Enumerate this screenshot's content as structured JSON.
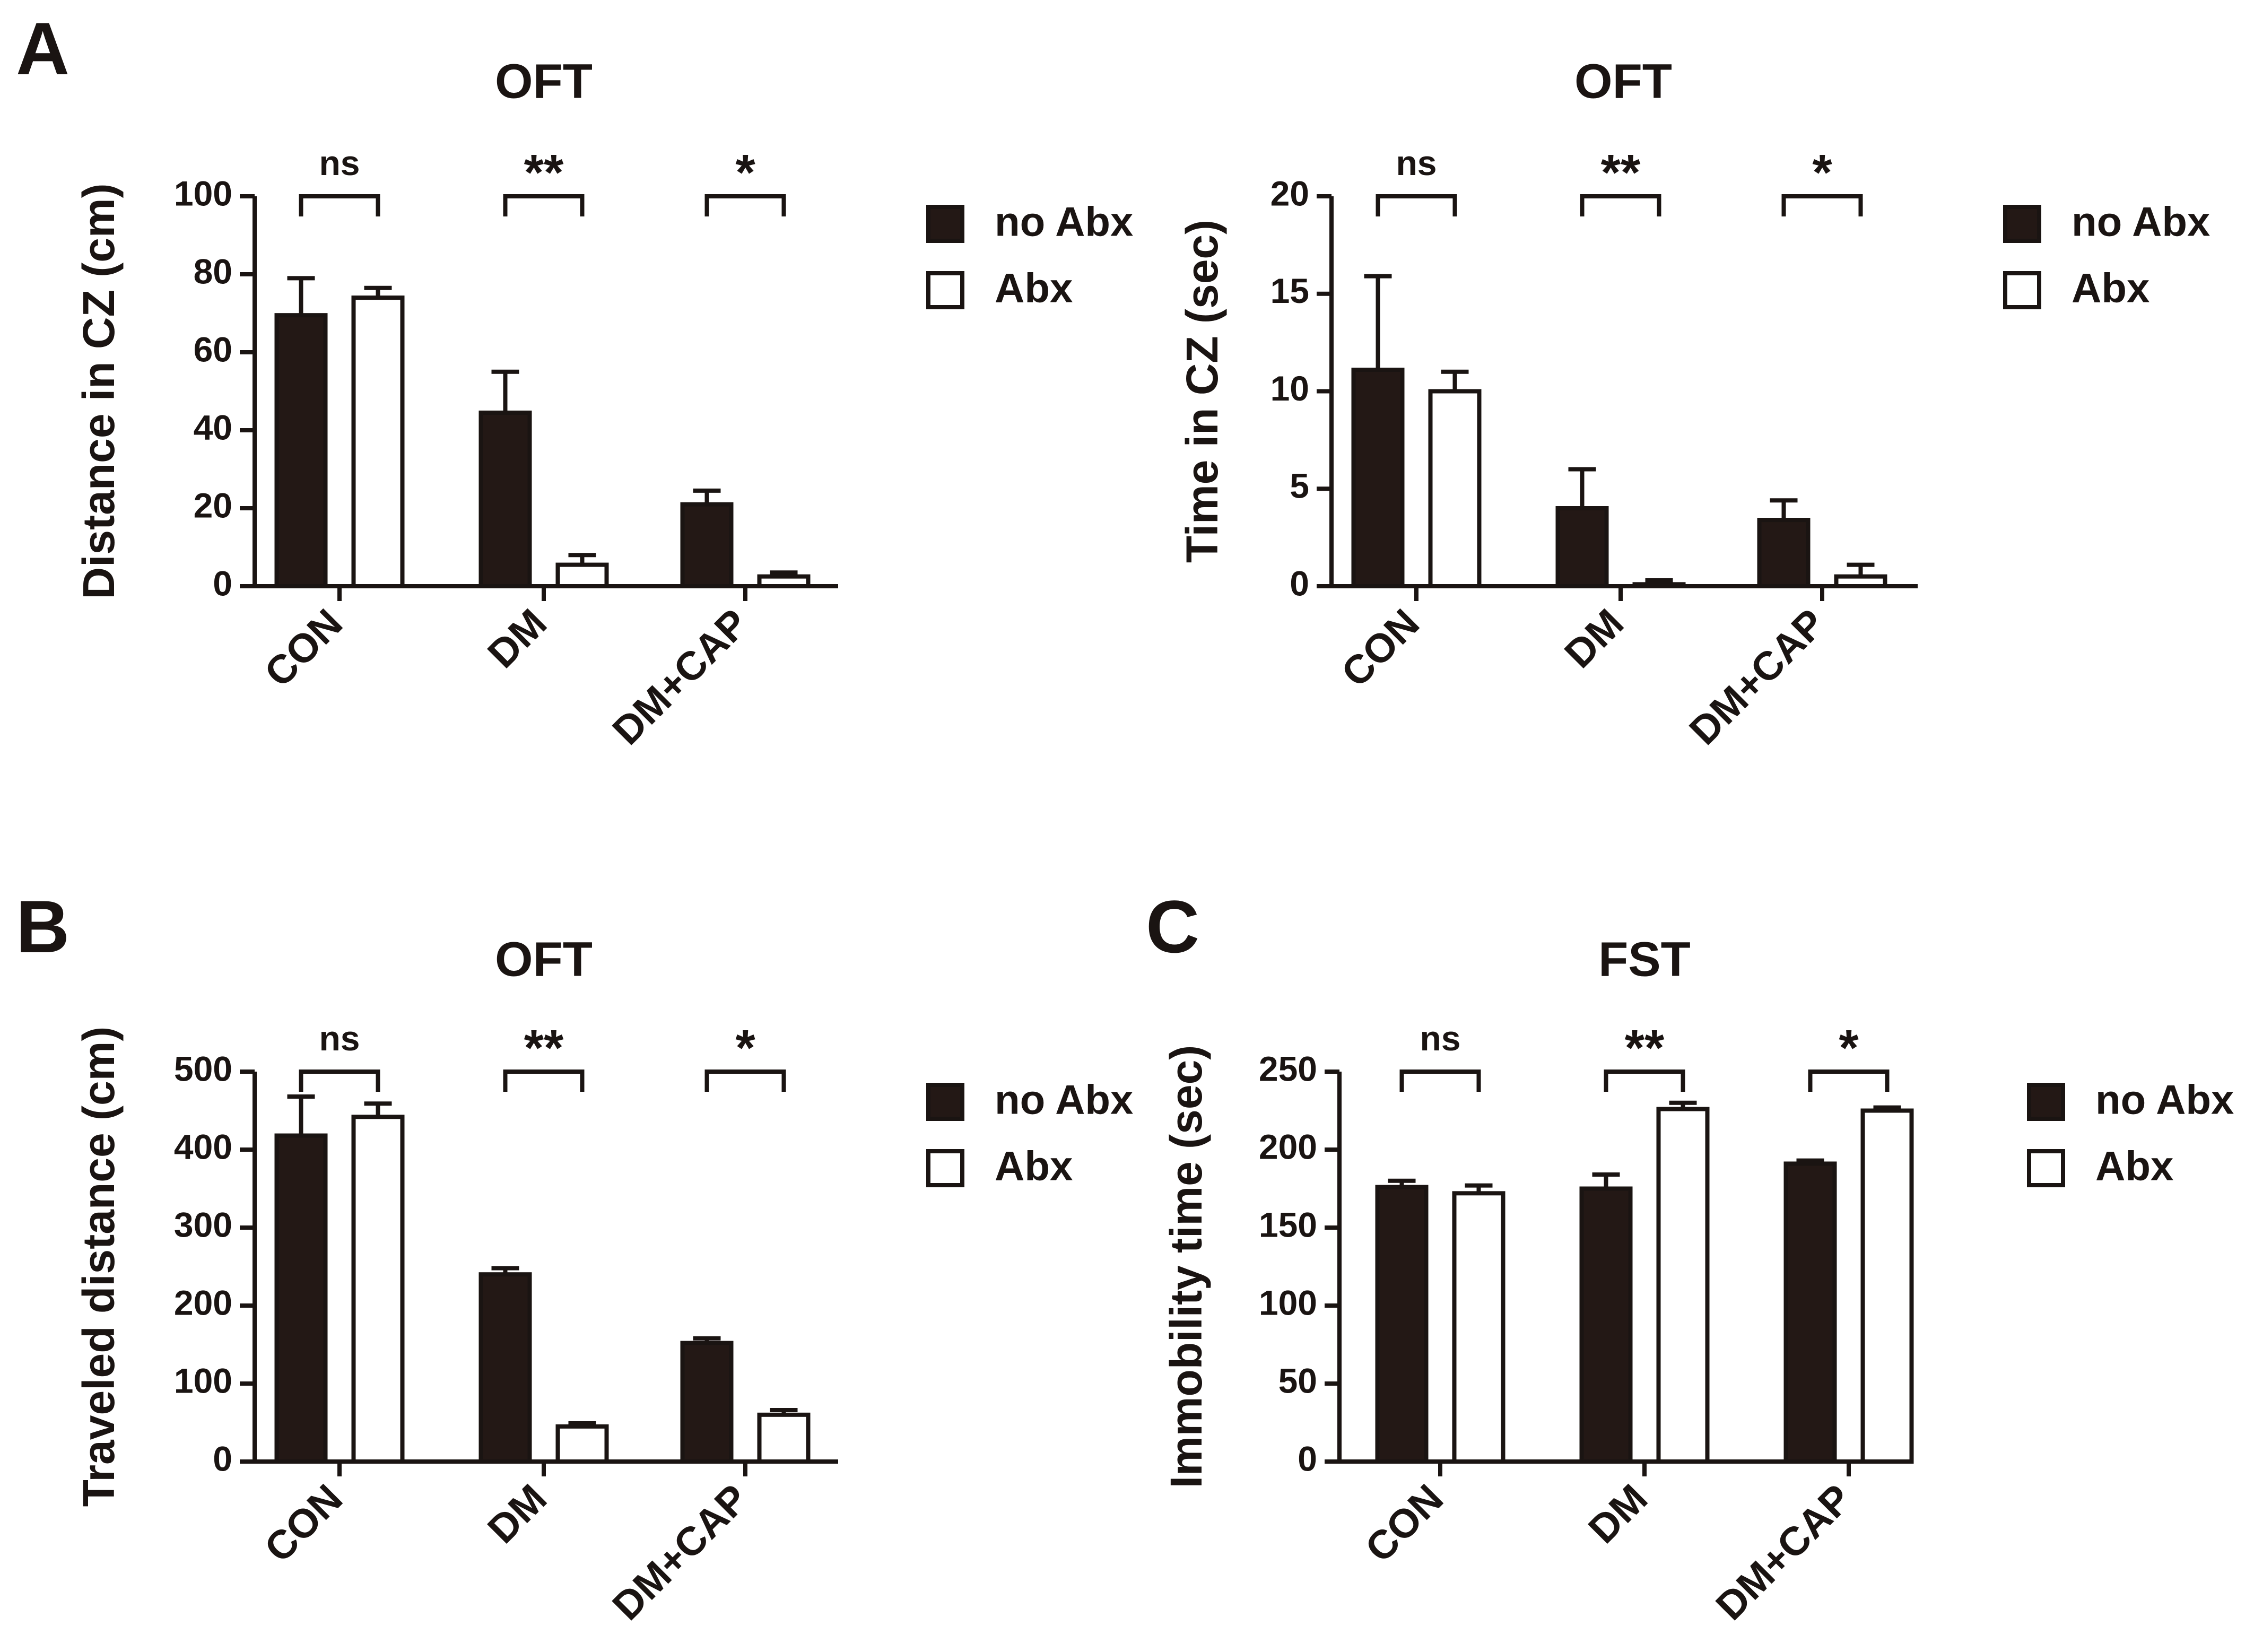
{
  "colors": {
    "filled": "#231815",
    "open": "#ffffff",
    "ink": "#1a1412"
  },
  "panel_labels": [
    "A",
    "B",
    "C"
  ],
  "chart_data": [
    {
      "id": "a1",
      "panel": "A",
      "type": "bar",
      "title": "OFT",
      "ylabel": "Distance in CZ (cm)",
      "xlabel": "",
      "ylim": [
        0,
        100
      ],
      "yticks": [
        "0",
        "20",
        "40",
        "60",
        "80",
        "100"
      ],
      "ytick_values": [
        0,
        20,
        40,
        60,
        80,
        100
      ],
      "categories": [
        "CON",
        "DM",
        "DM+CAP"
      ],
      "series": [
        {
          "name": "no Abx",
          "fill": "filled",
          "values": [
            69.5,
            44.5,
            21
          ],
          "errors": [
            9.5,
            10.5,
            3.5
          ]
        },
        {
          "name": "Abx",
          "fill": "open",
          "values": [
            74,
            5.5,
            2.5
          ],
          "errors": [
            2.5,
            2.5,
            1
          ]
        }
      ],
      "significance": [
        "ns",
        "**",
        "*"
      ],
      "legend": [
        "no Abx",
        "Abx"
      ],
      "legend_position": "right"
    },
    {
      "id": "a2",
      "panel": "",
      "type": "bar",
      "title": "OFT",
      "ylabel": "Time in CZ (sec)",
      "xlabel": "",
      "ylim": [
        0,
        20
      ],
      "yticks": [
        "0",
        "5",
        "10",
        "15",
        "20"
      ],
      "ytick_values": [
        0,
        5,
        10,
        15,
        20
      ],
      "categories": [
        "CON",
        "DM",
        "DM+CAP"
      ],
      "series": [
        {
          "name": "no Abx",
          "fill": "filled",
          "values": [
            11.1,
            4,
            3.4
          ],
          "errors": [
            4.8,
            2,
            1
          ]
        },
        {
          "name": "Abx",
          "fill": "open",
          "values": [
            10,
            0.1,
            0.5
          ],
          "errors": [
            1,
            0.2,
            0.6
          ]
        }
      ],
      "significance": [
        "ns",
        "**",
        "*"
      ],
      "legend": [
        "no Abx",
        "Abx"
      ],
      "legend_position": "right"
    },
    {
      "id": "b",
      "panel": "B",
      "type": "bar",
      "title": "OFT",
      "ylabel": "Traveled distance (cm)",
      "xlabel": "",
      "ylim": [
        0,
        500
      ],
      "yticks": [
        "0",
        "100",
        "200",
        "300",
        "400",
        "500"
      ],
      "ytick_values": [
        0,
        100,
        200,
        300,
        400,
        500
      ],
      "categories": [
        "CON",
        "DM",
        "DM+CAP"
      ],
      "series": [
        {
          "name": "no Abx",
          "fill": "filled",
          "values": [
            418,
            240,
            152
          ],
          "errors": [
            50,
            8,
            6
          ]
        },
        {
          "name": "Abx",
          "fill": "open",
          "values": [
            442,
            45,
            60
          ],
          "errors": [
            17,
            4,
            6
          ]
        }
      ],
      "significance": [
        "ns",
        "**",
        "*"
      ],
      "legend": [
        "no Abx",
        "Abx"
      ],
      "legend_position": "right"
    },
    {
      "id": "c",
      "panel": "C",
      "type": "bar",
      "title": "FST",
      "ylabel": "Immobility time (sec)",
      "xlabel": "",
      "ylim": [
        0,
        250
      ],
      "yticks": [
        "0",
        "50",
        "100",
        "150",
        "200",
        "250"
      ],
      "ytick_values": [
        0,
        50,
        100,
        150,
        200,
        250
      ],
      "categories": [
        "CON",
        "DM",
        "DM+CAP"
      ],
      "series": [
        {
          "name": "no Abx",
          "fill": "filled",
          "values": [
            176,
            175,
            191
          ],
          "errors": [
            4,
            9,
            2
          ]
        },
        {
          "name": "Abx",
          "fill": "open",
          "values": [
            172,
            226,
            225
          ],
          "errors": [
            5,
            4,
            2
          ]
        }
      ],
      "significance": [
        "ns",
        "**",
        "*"
      ],
      "legend": [
        "no Abx",
        "Abx"
      ],
      "legend_position": "right"
    }
  ]
}
